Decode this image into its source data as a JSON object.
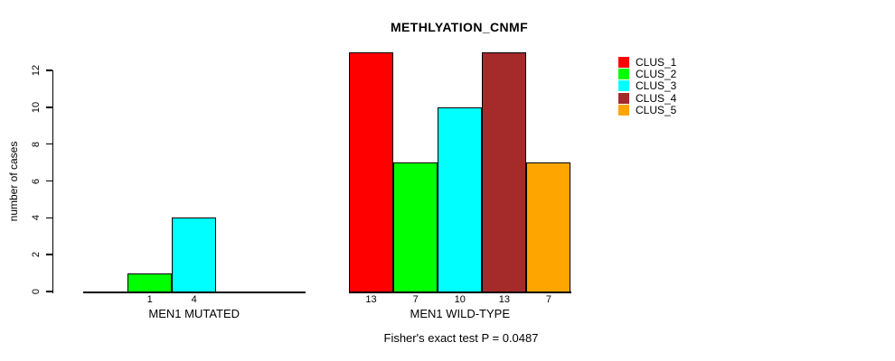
{
  "chart_data": {
    "type": "bar",
    "title": "METHLYATION_CNMF",
    "ylabel": "number of cases",
    "ylim": [
      0,
      12
    ],
    "yticks": [
      0,
      2,
      4,
      6,
      8,
      10,
      12
    ],
    "grid": false,
    "legend_position": "right",
    "categories": [
      "CLUS_1",
      "CLUS_2",
      "CLUS_3",
      "CLUS_4",
      "CLUS_5"
    ],
    "series_colors": [
      "#ff0000",
      "#00ff00",
      "#00ffff",
      "#a52a2a",
      "#ffa500"
    ],
    "groups": [
      {
        "label": "MEN1 MUTATED",
        "values": [
          0,
          1,
          4,
          0,
          0
        ]
      },
      {
        "label": "MEN1 WILD-TYPE",
        "values": [
          13,
          7,
          10,
          13,
          7
        ]
      }
    ],
    "value_labels_visible": true,
    "annotation": "Fisher's exact test P = 0.0487"
  },
  "legend": {
    "items": [
      {
        "label": "CLUS_1",
        "color": "#ff0000"
      },
      {
        "label": "CLUS_2",
        "color": "#00ff00"
      },
      {
        "label": "CLUS_3",
        "color": "#00ffff"
      },
      {
        "label": "CLUS_4",
        "color": "#a52a2a"
      },
      {
        "label": "CLUS_5",
        "color": "#ffa500"
      }
    ]
  },
  "colors": {
    "background": "#ffffff",
    "axis": "#000000",
    "text": "#000000"
  }
}
